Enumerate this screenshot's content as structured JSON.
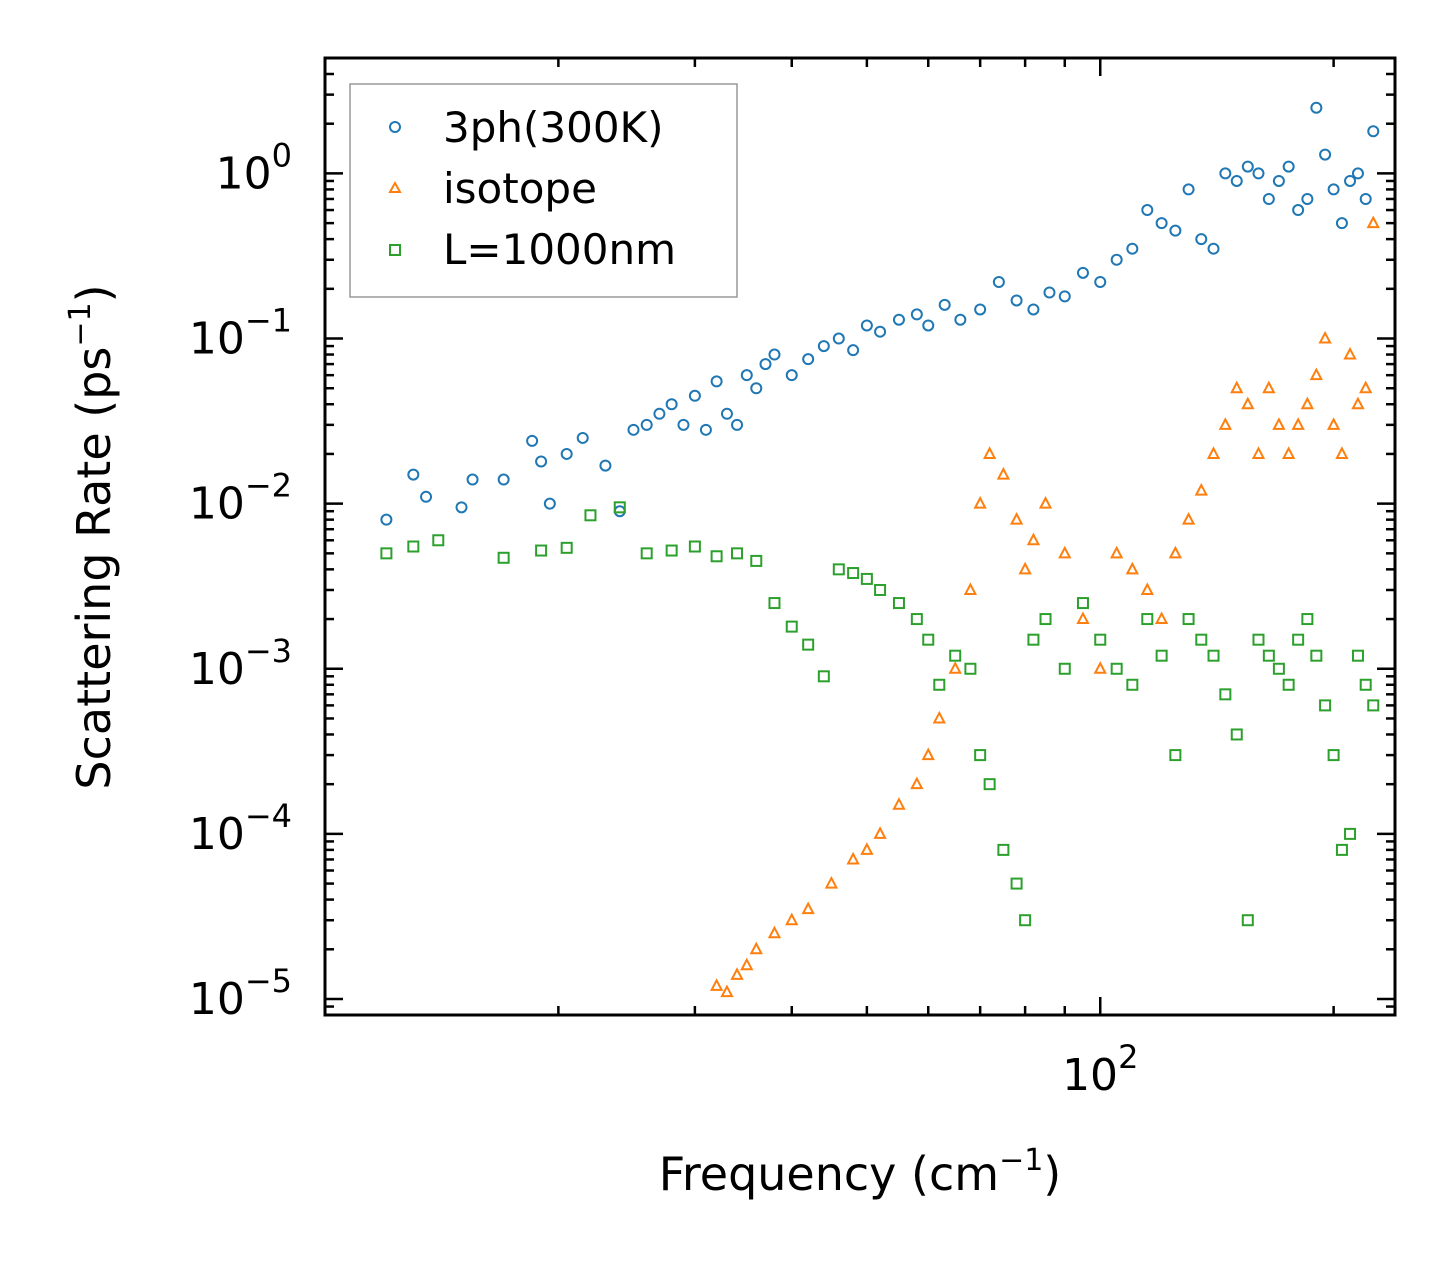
{
  "chart_data": {
    "type": "scatter",
    "title": "",
    "xlabel": "Frequency (cm",
    "xlabel_sup": "−1",
    "xlabel_end": ")",
    "ylabel": "Scattering Rate (ps",
    "ylabel_sup": "−1",
    "ylabel_end": ")",
    "xscale": "log",
    "yscale": "log",
    "xlim": [
      10,
      240
    ],
    "ylim": [
      8e-06,
      5
    ],
    "x_ticks": [
      {
        "value": 100,
        "base": "10",
        "exp": "2"
      }
    ],
    "y_ticks": [
      {
        "value": 1,
        "base": "10",
        "exp": "0"
      },
      {
        "value": 0.1,
        "base": "10",
        "exp": "−1"
      },
      {
        "value": 0.01,
        "base": "10",
        "exp": "−2"
      },
      {
        "value": 0.001,
        "base": "10",
        "exp": "−3"
      },
      {
        "value": 0.0001,
        "base": "10",
        "exp": "−4"
      },
      {
        "value": 1e-05,
        "base": "10",
        "exp": "−5"
      }
    ],
    "legend_position": "top-left",
    "series": [
      {
        "name": "3ph(300K)",
        "marker": "circle",
        "color": "#1f77b4",
        "x": [
          12,
          13,
          13.5,
          15,
          15.5,
          17,
          18.5,
          19,
          19.5,
          20.5,
          21.5,
          23,
          24,
          25,
          26,
          27,
          28,
          29,
          30,
          31,
          32,
          33,
          34,
          35,
          36,
          37,
          38,
          40,
          42,
          44,
          46,
          48,
          50,
          52,
          55,
          58,
          60,
          63,
          66,
          70,
          74,
          78,
          82,
          86,
          90,
          95,
          100,
          105,
          110,
          115,
          120,
          125,
          130,
          135,
          140,
          145,
          150,
          155,
          160,
          165,
          170,
          175,
          180,
          185,
          190,
          195,
          200,
          205,
          210,
          215,
          220,
          225
        ],
        "y": [
          0.008,
          0.015,
          0.011,
          0.0095,
          0.014,
          0.014,
          0.024,
          0.018,
          0.01,
          0.02,
          0.025,
          0.017,
          0.009,
          0.028,
          0.03,
          0.035,
          0.04,
          0.03,
          0.045,
          0.028,
          0.055,
          0.035,
          0.03,
          0.06,
          0.05,
          0.07,
          0.08,
          0.06,
          0.075,
          0.09,
          0.1,
          0.085,
          0.12,
          0.11,
          0.13,
          0.14,
          0.12,
          0.16,
          0.13,
          0.15,
          0.22,
          0.17,
          0.15,
          0.19,
          0.18,
          0.25,
          0.22,
          0.3,
          0.35,
          0.6,
          0.5,
          0.45,
          0.8,
          0.4,
          0.35,
          1.0,
          0.9,
          1.1,
          1.0,
          0.7,
          0.9,
          1.1,
          0.6,
          0.7,
          2.5,
          1.3,
          0.8,
          0.5,
          0.9,
          1.0,
          0.7,
          1.8
        ]
      },
      {
        "name": "isotope",
        "marker": "triangle",
        "color": "#ff7f0e",
        "x": [
          32,
          33,
          34,
          35,
          36,
          38,
          40,
          42,
          45,
          48,
          50,
          52,
          55,
          58,
          60,
          62,
          65,
          68,
          70,
          72,
          75,
          78,
          80,
          82,
          85,
          90,
          95,
          100,
          105,
          110,
          115,
          120,
          125,
          130,
          135,
          140,
          145,
          150,
          155,
          160,
          165,
          170,
          175,
          180,
          185,
          190,
          195,
          200,
          205,
          210,
          215,
          220,
          225
        ],
        "y": [
          1.2e-05,
          1.1e-05,
          1.4e-05,
          1.6e-05,
          2e-05,
          2.5e-05,
          3e-05,
          3.5e-05,
          5e-05,
          7e-05,
          8e-05,
          0.0001,
          0.00015,
          0.0002,
          0.0003,
          0.0005,
          0.001,
          0.003,
          0.01,
          0.02,
          0.015,
          0.008,
          0.004,
          0.006,
          0.01,
          0.005,
          0.002,
          0.001,
          0.005,
          0.004,
          0.003,
          0.002,
          0.005,
          0.008,
          0.012,
          0.02,
          0.03,
          0.05,
          0.04,
          0.02,
          0.05,
          0.03,
          0.02,
          0.03,
          0.04,
          0.06,
          0.1,
          0.03,
          0.02,
          0.08,
          0.04,
          0.05,
          0.5
        ]
      },
      {
        "name": "L=1000nm",
        "marker": "square",
        "color": "#2ca02c",
        "x": [
          12,
          13,
          14,
          17,
          19,
          20.5,
          22,
          24,
          26,
          28,
          30,
          32,
          34,
          36,
          38,
          40,
          42,
          44,
          46,
          48,
          50,
          52,
          55,
          58,
          60,
          62,
          65,
          68,
          70,
          72,
          75,
          78,
          80,
          82,
          85,
          90,
          95,
          100,
          105,
          110,
          115,
          120,
          125,
          130,
          135,
          140,
          145,
          150,
          155,
          160,
          165,
          170,
          175,
          180,
          185,
          190,
          195,
          200,
          205,
          210,
          215,
          220,
          225
        ],
        "y": [
          0.005,
          0.0055,
          0.006,
          0.0047,
          0.0052,
          0.0054,
          0.0085,
          0.0095,
          0.005,
          0.0052,
          0.0055,
          0.0048,
          0.005,
          0.0045,
          0.0025,
          0.0018,
          0.0014,
          0.0009,
          0.004,
          0.0038,
          0.0035,
          0.003,
          0.0025,
          0.002,
          0.0015,
          0.0008,
          0.0012,
          0.001,
          0.0003,
          0.0002,
          8e-05,
          5e-05,
          3e-05,
          0.0015,
          0.002,
          0.001,
          0.0025,
          0.0015,
          0.001,
          0.0008,
          0.002,
          0.0012,
          0.0003,
          0.002,
          0.0015,
          0.0012,
          0.0007,
          0.0004,
          3e-05,
          0.0015,
          0.0012,
          0.001,
          0.0008,
          0.0015,
          0.002,
          0.0012,
          0.0006,
          0.0003,
          8e-05,
          0.0001,
          0.0012,
          0.0008,
          0.0006
        ]
      }
    ]
  }
}
